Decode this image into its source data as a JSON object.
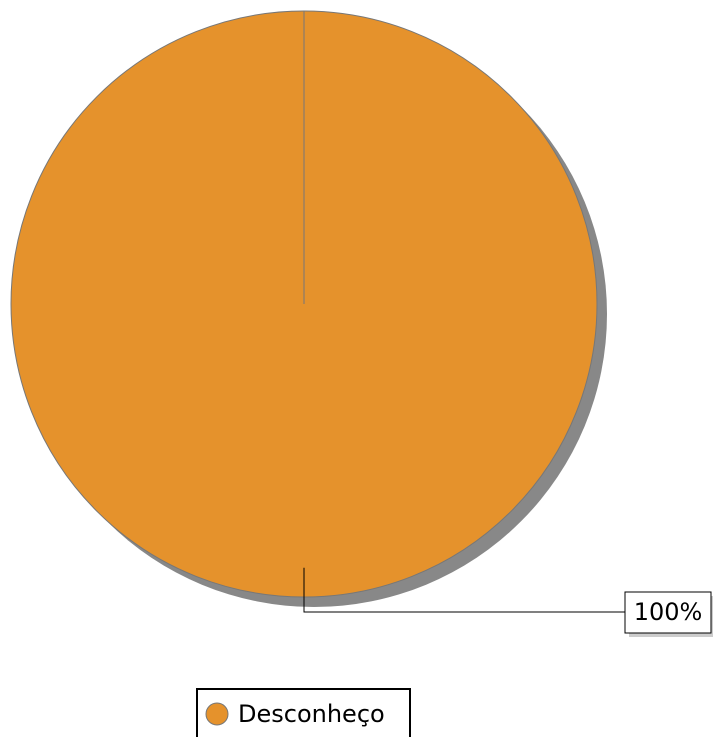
{
  "chart_data": {
    "type": "pie",
    "categories": [
      "Desconheço"
    ],
    "values": [
      100
    ],
    "value_labels": [
      "100%"
    ],
    "colors": [
      "#e5922c"
    ]
  }
}
